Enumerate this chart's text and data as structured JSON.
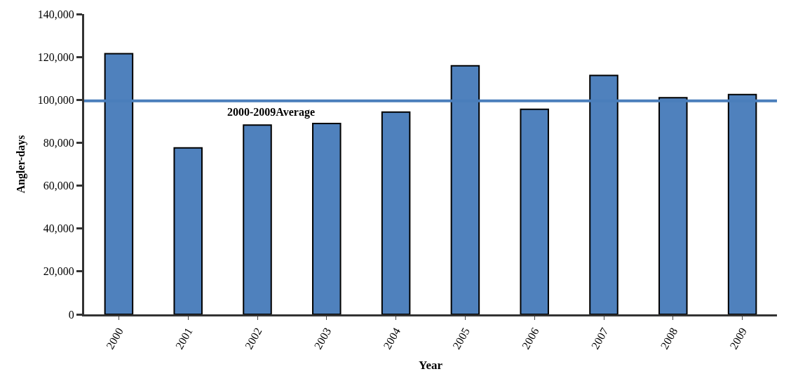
{
  "chart_data": {
    "type": "bar",
    "xlabel": "Year",
    "ylabel": "Angler-days",
    "categories": [
      "2000",
      "2001",
      "2002",
      "2003",
      "2004",
      "2005",
      "2006",
      "2007",
      "2008",
      "2009"
    ],
    "series": [
      {
        "name": null,
        "color": "#4f81bd",
        "values": [
          121500,
          77600,
          88200,
          89000,
          94300,
          115900,
          95600,
          111400,
          101000,
          102500
        ]
      }
    ],
    "ref_lines": [
      {
        "axis": "y",
        "value": 99500,
        "label": "2000-2009Average",
        "color": "#4a7ebb",
        "line_style": "solid"
      }
    ],
    "ylim": [
      0,
      140000
    ],
    "yticks": [
      {
        "value": 0,
        "label": "0"
      },
      {
        "value": 20000,
        "label": "20,000"
      },
      {
        "value": 40000,
        "label": "40,000"
      },
      {
        "value": 60000,
        "label": "60,000"
      },
      {
        "value": 80000,
        "label": "80,000"
      },
      {
        "value": 100000,
        "label": "100,000"
      },
      {
        "value": 120000,
        "label": "120,000"
      },
      {
        "value": 140000,
        "label": "140,000"
      }
    ]
  }
}
